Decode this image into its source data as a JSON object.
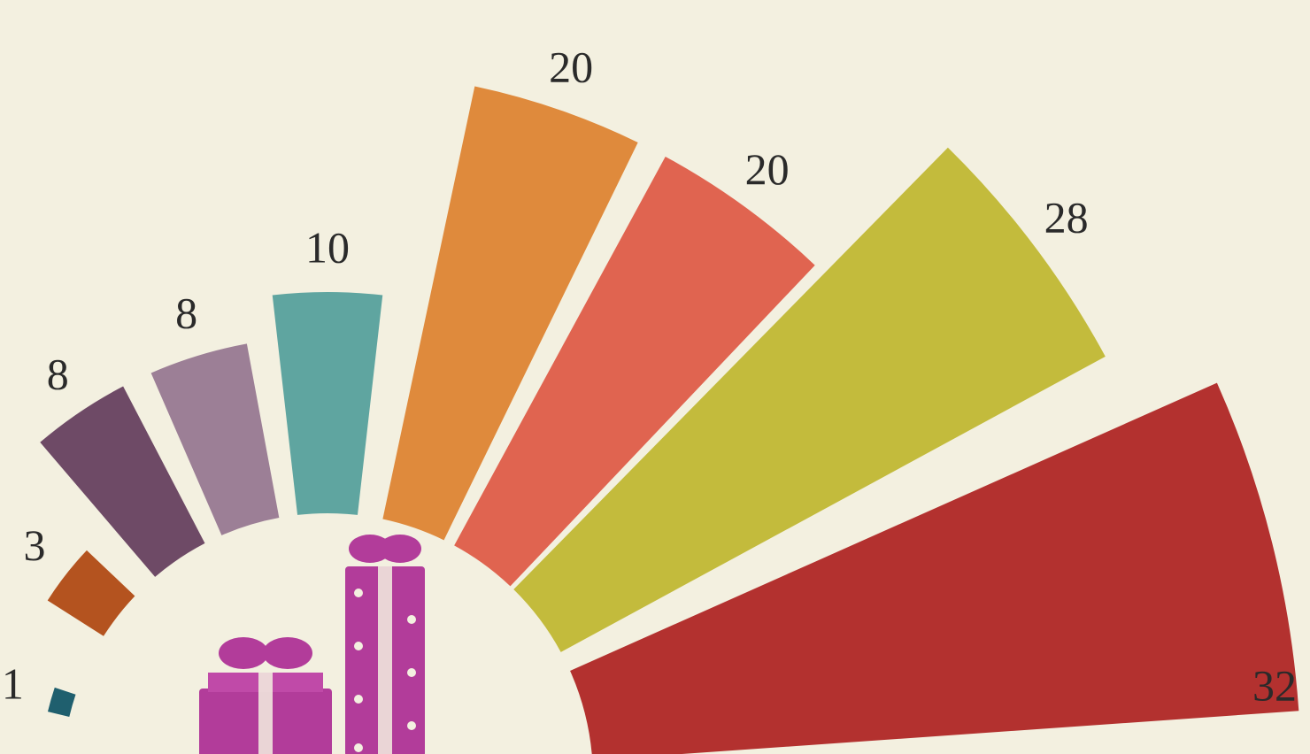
{
  "chart_data": {
    "type": "radial_bar",
    "categories": [
      null,
      null,
      null,
      null,
      null,
      null,
      null,
      null,
      null
    ],
    "values": [
      1,
      3,
      8,
      8,
      10,
      20,
      20,
      28,
      32
    ],
    "colors": [
      "#1f5f6e",
      "#b4531f",
      "#6e4a66",
      "#9c7f96",
      "#5fa5a0",
      "#df8a3c",
      "#e06450",
      "#c3bb3c",
      "#b3312f"
    ]
  }
}
